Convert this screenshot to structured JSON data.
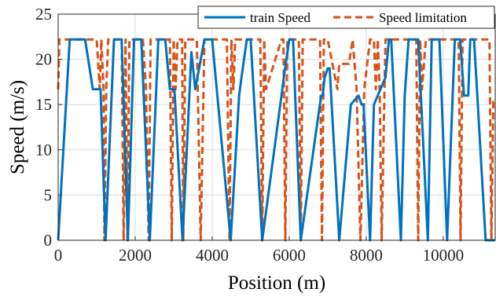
{
  "chart_data": {
    "type": "line",
    "title": "",
    "xlabel": "Position (m)",
    "ylabel": "Speed (m/s)",
    "xlim": [
      0,
      11350
    ],
    "ylim": [
      0,
      25
    ],
    "xticks": [
      0,
      2000,
      4000,
      6000,
      8000,
      10000
    ],
    "yticks": [
      0,
      5,
      10,
      15,
      20,
      25
    ],
    "grid": true,
    "legend_position": "top-right",
    "series": [
      {
        "name": "train Speed",
        "color": "#0072BD",
        "style": "solid",
        "x": [
          0,
          300,
          700,
          900,
          1100,
          1230,
          1450,
          1650,
          1810,
          1970,
          2160,
          2380,
          2600,
          2780,
          2900,
          3020,
          3230,
          3460,
          3560,
          3800,
          4000,
          4480,
          4700,
          4760,
          4900,
          5000,
          5300,
          5800,
          5860,
          6000,
          6100,
          6300,
          6830,
          6870,
          6920,
          7000,
          7050,
          7300,
          7600,
          7800,
          7880,
          7930,
          8100,
          8200,
          8500,
          8590,
          8650,
          8900,
          9000,
          9100,
          9350,
          9600,
          9700,
          9900,
          10100,
          10300,
          10440,
          10540,
          10650,
          10700,
          10800,
          11100,
          11350
        ],
        "y": [
          0,
          22.2,
          22.2,
          16.7,
          16.7,
          0,
          22.2,
          22.2,
          0,
          22.2,
          22.2,
          0,
          22.2,
          22.2,
          16.7,
          16.7,
          0,
          20.8,
          16.7,
          22.2,
          22.2,
          0,
          16,
          18,
          22.2,
          22.2,
          0,
          16,
          18,
          22.2,
          22.2,
          0,
          16,
          16,
          18,
          19,
          19,
          0,
          15,
          16,
          15,
          15,
          0,
          15,
          18,
          22.2,
          22.2,
          0,
          16,
          22.2,
          22.2,
          0,
          22.2,
          22.2,
          0,
          22.2,
          22.2,
          16,
          16,
          22.2,
          22.2,
          0,
          0
        ]
      },
      {
        "name": "Speed limitation",
        "color": "#D95319",
        "style": "dashed",
        "x": [
          0,
          30,
          60,
          1000,
          1080,
          1120,
          1180,
          1200,
          1250,
          1300,
          1650,
          1700,
          1750,
          1800,
          1850,
          1900,
          2200,
          2280,
          2350,
          2400,
          2450,
          2900,
          2950,
          3000,
          3050,
          3100,
          3220,
          3250,
          3300,
          3600,
          3700,
          3800,
          3850,
          4380,
          4450,
          4500,
          4550,
          4600,
          5250,
          5300,
          5350,
          5400,
          5800,
          5850,
          5900,
          5950,
          6000,
          6250,
          6300,
          6350,
          6400,
          6800,
          6850,
          6900,
          6950,
          7000,
          7250,
          7300,
          7350,
          7400,
          7550,
          7650,
          7750,
          7850,
          7950,
          8100,
          8200,
          8250,
          8300,
          8350,
          8400,
          8500,
          8550,
          8600,
          9300,
          9350,
          9400,
          9450,
          9550,
          9600,
          9650,
          10400,
          10450,
          10500,
          10550,
          11200,
          11250,
          11300,
          11350
        ],
        "y": [
          16.7,
          22.2,
          22.2,
          22.2,
          16.7,
          22.2,
          16.7,
          0,
          16.7,
          22.2,
          22.2,
          0,
          22.2,
          0,
          22.2,
          22.2,
          22.2,
          16.7,
          0,
          22.2,
          22.2,
          22.2,
          0,
          22.2,
          16.7,
          22.2,
          22.2,
          0,
          22.2,
          22.2,
          0,
          22.2,
          22.2,
          22.2,
          0,
          22.2,
          16.7,
          22.2,
          22.2,
          0,
          22.2,
          16.7,
          22.2,
          22.2,
          0,
          22.2,
          22.2,
          22.2,
          0,
          22.2,
          22.2,
          22.2,
          0,
          22.2,
          22.2,
          22.2,
          16.7,
          19.5,
          19.5,
          19.5,
          19.5,
          22.2,
          16.7,
          0,
          16.7,
          22.2,
          22.2,
          16.7,
          22.2,
          16.7,
          0,
          22.2,
          22.2,
          22.2,
          22.2,
          0,
          22.2,
          16.7,
          22.2,
          22.2,
          22.2,
          22.2,
          0,
          22.2,
          22.2,
          22.2,
          0,
          15.3,
          15.3
        ]
      }
    ]
  }
}
